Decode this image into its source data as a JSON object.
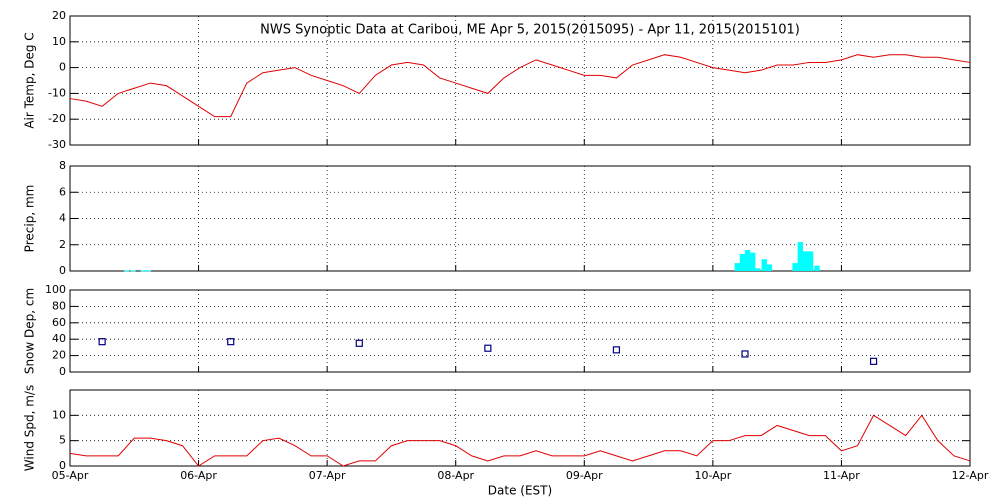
{
  "chart_data": [
    {
      "type": "line",
      "title": "NWS Synoptic Data at Caribou, ME   Apr  5, 2015(2015095) - Apr 11, 2015(2015101)",
      "ylabel": "Air Temp, Deg C",
      "color": "#e00000",
      "xlim": [
        0,
        7
      ],
      "ylim": [
        -30,
        20
      ],
      "yticks": [
        -30,
        -20,
        -10,
        0,
        10,
        20
      ],
      "grid": true,
      "x": [
        0,
        0.125,
        0.25,
        0.375,
        0.5,
        0.625,
        0.75,
        0.875,
        1,
        1.125,
        1.25,
        1.375,
        1.5,
        1.625,
        1.75,
        1.875,
        2,
        2.125,
        2.25,
        2.375,
        2.5,
        2.625,
        2.75,
        2.875,
        3,
        3.125,
        3.25,
        3.375,
        3.5,
        3.625,
        3.75,
        3.875,
        4,
        4.125,
        4.25,
        4.375,
        4.5,
        4.625,
        4.75,
        4.875,
        5,
        5.125,
        5.25,
        5.375,
        5.5,
        5.625,
        5.75,
        5.875,
        6,
        6.125,
        6.25,
        6.375,
        6.5,
        6.625,
        6.75,
        6.875,
        7
      ],
      "values": [
        -12,
        -13,
        -15,
        -10,
        -8,
        -6,
        -7,
        -11,
        -15,
        -19,
        -19,
        -6,
        -2,
        -1,
        0,
        -3,
        -5,
        -7,
        -10,
        -3,
        1,
        2,
        1,
        -4,
        -6,
        -8,
        -10,
        -4,
        0,
        3,
        1,
        -1,
        -3,
        -3,
        -4,
        1,
        3,
        5,
        4,
        2,
        0,
        -1,
        -2,
        -1,
        1,
        1,
        2,
        2,
        3,
        5,
        4,
        5,
        5,
        4,
        4,
        3,
        2
      ]
    },
    {
      "type": "bar",
      "ylabel": "Precip, mm",
      "color": "#00ffff",
      "xlim": [
        0,
        7
      ],
      "ylim": [
        0,
        8
      ],
      "yticks": [
        0,
        2,
        4,
        6,
        8
      ],
      "grid": true,
      "x": [
        0.44,
        0.49,
        0.57,
        0.61,
        5.19,
        5.23,
        5.27,
        5.31,
        5.35,
        5.4,
        5.44,
        5.64,
        5.68,
        5.72,
        5.76,
        5.81
      ],
      "values": [
        0.05,
        0.05,
        0.05,
        0.05,
        0.6,
        1.3,
        1.6,
        1.4,
        0.2,
        0.9,
        0.5,
        0.6,
        2.2,
        1.5,
        1.5,
        0.4
      ]
    },
    {
      "type": "scatter",
      "ylabel": "Snow Dep, cm",
      "color": "#000080",
      "xlim": [
        0,
        7
      ],
      "ylim": [
        0,
        100
      ],
      "yticks": [
        0,
        20,
        40,
        60,
        80,
        100
      ],
      "grid": true,
      "x": [
        0.25,
        1.25,
        2.25,
        3.25,
        4.25,
        5.25,
        6.25
      ],
      "values": [
        37,
        37,
        35,
        29,
        27,
        22,
        13
      ]
    },
    {
      "type": "line",
      "ylabel": "Wind Spd, m/s",
      "xlabel": "Date (EST)",
      "color": "#e00000",
      "xlim": [
        0,
        7
      ],
      "ylim": [
        0,
        15
      ],
      "yticks": [
        0,
        5,
        10
      ],
      "grid": true,
      "xticks": [
        {
          "value": 0,
          "label": "05-Apr"
        },
        {
          "value": 1,
          "label": "06-Apr"
        },
        {
          "value": 2,
          "label": "07-Apr"
        },
        {
          "value": 3,
          "label": "08-Apr"
        },
        {
          "value": 4,
          "label": "09-Apr"
        },
        {
          "value": 5,
          "label": "10-Apr"
        },
        {
          "value": 6,
          "label": "11-Apr"
        },
        {
          "value": 7,
          "label": "12-Apr"
        }
      ],
      "x": [
        0,
        0.125,
        0.25,
        0.375,
        0.5,
        0.625,
        0.75,
        0.875,
        1,
        1.125,
        1.25,
        1.375,
        1.5,
        1.625,
        1.75,
        1.875,
        2,
        2.125,
        2.25,
        2.375,
        2.5,
        2.625,
        2.75,
        2.875,
        3,
        3.125,
        3.25,
        3.375,
        3.5,
        3.625,
        3.75,
        3.875,
        4,
        4.125,
        4.25,
        4.375,
        4.5,
        4.625,
        4.75,
        4.875,
        5,
        5.125,
        5.25,
        5.375,
        5.5,
        5.625,
        5.75,
        5.875,
        6,
        6.125,
        6.25,
        6.375,
        6.5,
        6.625,
        6.75,
        6.875,
        7
      ],
      "values": [
        2.5,
        2,
        2,
        2,
        5.5,
        5.5,
        5,
        4,
        0,
        2,
        2,
        2,
        5,
        5.5,
        4,
        2,
        2,
        0,
        1,
        1,
        4,
        5,
        5,
        5,
        4,
        2,
        1,
        2,
        2,
        3,
        2,
        2,
        2,
        3,
        2,
        1,
        2,
        3,
        3,
        2,
        5,
        5,
        6,
        6,
        8,
        7,
        6,
        6,
        3,
        4,
        10,
        8,
        6,
        10,
        5,
        2,
        1
      ]
    }
  ]
}
